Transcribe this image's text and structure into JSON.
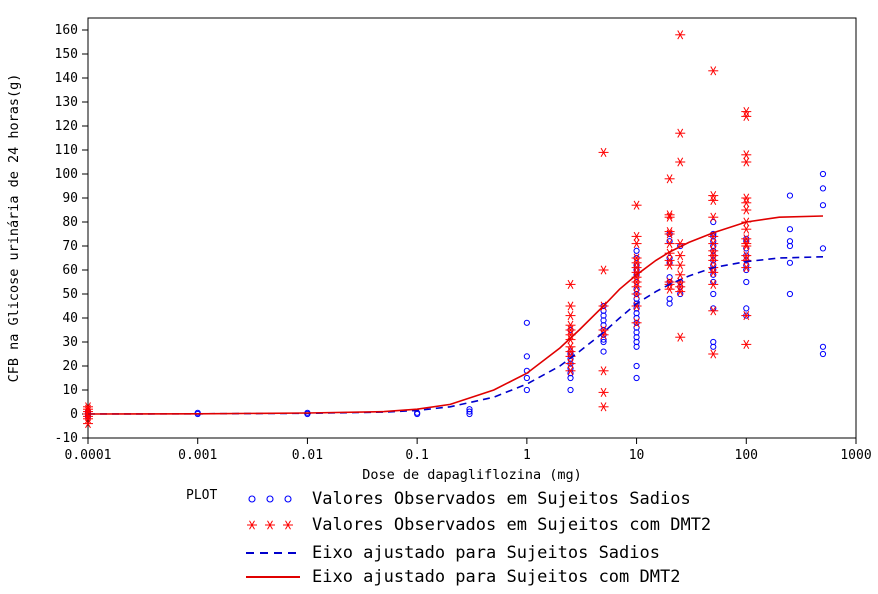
{
  "chart_data": {
    "type": "scatter",
    "xlabel": "Dose de dapagliflozina (mg)",
    "ylabel": "CFB na Glicose urinária de 24 horas(g)",
    "x_scale": "log",
    "xlim": [
      0.0001,
      1000
    ],
    "ylim": [
      -10,
      165
    ],
    "x_ticks": [
      "0.0001",
      "0.001",
      "0.01",
      "0.1",
      "1",
      "10",
      "100",
      "1000"
    ],
    "y_ticks": [
      "-10",
      "0",
      "10",
      "20",
      "30",
      "40",
      "50",
      "60",
      "70",
      "80",
      "90",
      "100",
      "110",
      "120",
      "130",
      "140",
      "150",
      "160"
    ],
    "legend_title": "PLOT",
    "series": [
      {
        "name": "Valores Observados em Sujeitos Sadios",
        "marker": "circle",
        "color": "#0000ff",
        "points": [
          [
            0.0001,
            0
          ],
          [
            0.0001,
            1
          ],
          [
            0.0001,
            -1
          ],
          [
            0.0001,
            0.5
          ],
          [
            0.001,
            0
          ],
          [
            0.001,
            0.5
          ],
          [
            0.01,
            0
          ],
          [
            0.01,
            0.5
          ],
          [
            0.1,
            0
          ],
          [
            0.1,
            0.5
          ],
          [
            0.3,
            0
          ],
          [
            0.3,
            1
          ],
          [
            0.3,
            2
          ],
          [
            1,
            10
          ],
          [
            1,
            15
          ],
          [
            1,
            18
          ],
          [
            1,
            24
          ],
          [
            1,
            38
          ],
          [
            2.5,
            10
          ],
          [
            2.5,
            15
          ],
          [
            2.5,
            17
          ],
          [
            2.5,
            19
          ],
          [
            2.5,
            21
          ],
          [
            2.5,
            23
          ],
          [
            2.5,
            25
          ],
          [
            2.5,
            26
          ],
          [
            2.5,
            35
          ],
          [
            5,
            26
          ],
          [
            5,
            30
          ],
          [
            5,
            31
          ],
          [
            5,
            33
          ],
          [
            5,
            35
          ],
          [
            5,
            37
          ],
          [
            5,
            39
          ],
          [
            5,
            41
          ],
          [
            5,
            43
          ],
          [
            5,
            45
          ],
          [
            10,
            15
          ],
          [
            10,
            20
          ],
          [
            10,
            28
          ],
          [
            10,
            30
          ],
          [
            10,
            32
          ],
          [
            10,
            34
          ],
          [
            10,
            36
          ],
          [
            10,
            38
          ],
          [
            10,
            40
          ],
          [
            10,
            42
          ],
          [
            10,
            44
          ],
          [
            10,
            46
          ],
          [
            10,
            48
          ],
          [
            10,
            50
          ],
          [
            10,
            52
          ],
          [
            10,
            55
          ],
          [
            10,
            58
          ],
          [
            10,
            60
          ],
          [
            10,
            62
          ],
          [
            10,
            65
          ],
          [
            10,
            68
          ],
          [
            20,
            46
          ],
          [
            20,
            48
          ],
          [
            20,
            55
          ],
          [
            20,
            57
          ],
          [
            20,
            63
          ],
          [
            20,
            65
          ],
          [
            20,
            72
          ],
          [
            20,
            75
          ],
          [
            25,
            50
          ],
          [
            25,
            53
          ],
          [
            25,
            55
          ],
          [
            25,
            70
          ],
          [
            50,
            28
          ],
          [
            50,
            30
          ],
          [
            50,
            44
          ],
          [
            50,
            50
          ],
          [
            50,
            55
          ],
          [
            50,
            58
          ],
          [
            50,
            60
          ],
          [
            50,
            62
          ],
          [
            50,
            64
          ],
          [
            50,
            66
          ],
          [
            50,
            68
          ],
          [
            50,
            70
          ],
          [
            50,
            72
          ],
          [
            50,
            74
          ],
          [
            50,
            75
          ],
          [
            50,
            80
          ],
          [
            100,
            41
          ],
          [
            100,
            44
          ],
          [
            100,
            55
          ],
          [
            100,
            60
          ],
          [
            100,
            62
          ],
          [
            100,
            64
          ],
          [
            100,
            66
          ],
          [
            100,
            69
          ],
          [
            100,
            72
          ],
          [
            100,
            73
          ],
          [
            250,
            50
          ],
          [
            250,
            63
          ],
          [
            250,
            70
          ],
          [
            250,
            72
          ],
          [
            250,
            77
          ],
          [
            250,
            91
          ],
          [
            500,
            25
          ],
          [
            500,
            28
          ],
          [
            500,
            69
          ],
          [
            500,
            87
          ],
          [
            500,
            94
          ],
          [
            500,
            100
          ]
        ]
      },
      {
        "name": "Valores Observados em Sujeitos com DMT2",
        "marker": "asterisk",
        "color": "#ff0000",
        "points": [
          [
            0.0001,
            -4
          ],
          [
            0.0001,
            -2
          ],
          [
            0.0001,
            -1
          ],
          [
            0.0001,
            0
          ],
          [
            0.0001,
            1
          ],
          [
            0.0001,
            2
          ],
          [
            0.0001,
            3
          ],
          [
            2.5,
            18
          ],
          [
            2.5,
            21
          ],
          [
            2.5,
            24
          ],
          [
            2.5,
            26
          ],
          [
            2.5,
            28
          ],
          [
            2.5,
            31
          ],
          [
            2.5,
            33
          ],
          [
            2.5,
            35
          ],
          [
            2.5,
            37
          ],
          [
            2.5,
            41
          ],
          [
            2.5,
            45
          ],
          [
            2.5,
            54
          ],
          [
            5,
            3
          ],
          [
            5,
            9
          ],
          [
            5,
            18
          ],
          [
            5,
            33
          ],
          [
            5,
            35
          ],
          [
            5,
            45
          ],
          [
            5,
            60
          ],
          [
            5,
            109
          ],
          [
            10,
            38
          ],
          [
            10,
            45
          ],
          [
            10,
            50
          ],
          [
            10,
            53
          ],
          [
            10,
            55
          ],
          [
            10,
            57
          ],
          [
            10,
            59
          ],
          [
            10,
            61
          ],
          [
            10,
            63
          ],
          [
            10,
            65
          ],
          [
            10,
            71
          ],
          [
            10,
            74
          ],
          [
            10,
            87
          ],
          [
            20,
            52
          ],
          [
            20,
            54
          ],
          [
            20,
            55
          ],
          [
            20,
            62
          ],
          [
            20,
            64
          ],
          [
            20,
            67
          ],
          [
            20,
            71
          ],
          [
            20,
            75
          ],
          [
            20,
            76
          ],
          [
            20,
            82
          ],
          [
            20,
            83
          ],
          [
            20,
            98
          ],
          [
            25,
            32
          ],
          [
            25,
            51
          ],
          [
            25,
            53
          ],
          [
            25,
            55
          ],
          [
            25,
            58
          ],
          [
            25,
            62
          ],
          [
            25,
            66
          ],
          [
            25,
            71
          ],
          [
            25,
            105
          ],
          [
            25,
            117
          ],
          [
            25,
            158
          ],
          [
            50,
            25
          ],
          [
            50,
            43
          ],
          [
            50,
            54
          ],
          [
            50,
            59
          ],
          [
            50,
            61
          ],
          [
            50,
            64
          ],
          [
            50,
            66
          ],
          [
            50,
            68
          ],
          [
            50,
            71
          ],
          [
            50,
            74
          ],
          [
            50,
            82
          ],
          [
            50,
            89
          ],
          [
            50,
            91
          ],
          [
            50,
            143
          ],
          [
            100,
            29
          ],
          [
            100,
            41
          ],
          [
            100,
            61
          ],
          [
            100,
            64
          ],
          [
            100,
            66
          ],
          [
            100,
            70
          ],
          [
            100,
            71
          ],
          [
            100,
            73
          ],
          [
            100,
            77
          ],
          [
            100,
            80
          ],
          [
            100,
            85
          ],
          [
            100,
            88
          ],
          [
            100,
            90
          ],
          [
            100,
            105
          ],
          [
            100,
            108
          ],
          [
            100,
            124
          ],
          [
            100,
            126
          ]
        ]
      },
      {
        "name": "Eixo ajustado para Sujeitos Sadios",
        "marker": "line-dashed",
        "color": "#0000cc",
        "points": [
          [
            0.0001,
            0
          ],
          [
            0.001,
            0.1
          ],
          [
            0.01,
            0.3
          ],
          [
            0.05,
            0.8
          ],
          [
            0.1,
            1.5
          ],
          [
            0.2,
            3
          ],
          [
            0.5,
            7
          ],
          [
            1,
            12.5
          ],
          [
            2,
            20
          ],
          [
            3,
            26
          ],
          [
            5,
            34
          ],
          [
            7,
            40
          ],
          [
            10,
            46
          ],
          [
            15,
            51
          ],
          [
            20,
            54
          ],
          [
            30,
            57.5
          ],
          [
            50,
            61
          ],
          [
            100,
            63.5
          ],
          [
            200,
            65
          ],
          [
            500,
            65.5
          ]
        ]
      },
      {
        "name": "Eixo ajustado para Sujeitos com DMT2",
        "marker": "line-solid",
        "color": "#e00000",
        "points": [
          [
            0.0001,
            0
          ],
          [
            0.001,
            0.1
          ],
          [
            0.01,
            0.4
          ],
          [
            0.05,
            1
          ],
          [
            0.1,
            2
          ],
          [
            0.2,
            4
          ],
          [
            0.5,
            10
          ],
          [
            1,
            17
          ],
          [
            2,
            27.5
          ],
          [
            3,
            35
          ],
          [
            5,
            45
          ],
          [
            7,
            52
          ],
          [
            10,
            58
          ],
          [
            15,
            64
          ],
          [
            20,
            67.5
          ],
          [
            30,
            71.5
          ],
          [
            50,
            75.5
          ],
          [
            100,
            80
          ],
          [
            200,
            82
          ],
          [
            500,
            82.5
          ]
        ]
      }
    ]
  }
}
